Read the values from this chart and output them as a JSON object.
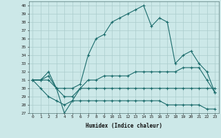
{
  "title": "",
  "xlabel": "Humidex (Indice chaleur)",
  "bg_color": "#cce8e8",
  "line_color": "#1a6b6b",
  "grid_color": "#aacccc",
  "xlim": [
    -0.5,
    23.5
  ],
  "ylim": [
    27,
    40.5
  ],
  "yticks": [
    27,
    28,
    29,
    30,
    31,
    32,
    33,
    34,
    35,
    36,
    37,
    38,
    39,
    40
  ],
  "xticks": [
    0,
    1,
    2,
    3,
    4,
    5,
    6,
    7,
    8,
    9,
    10,
    11,
    12,
    13,
    14,
    15,
    16,
    17,
    18,
    19,
    20,
    21,
    22,
    23
  ],
  "series": [
    [
      31,
      31,
      32,
      30,
      30,
      30,
      30.5,
      34,
      36,
      36.5,
      38,
      38.5,
      39,
      39.5,
      40,
      37.5,
      38.5,
      38,
      33,
      34,
      34.5,
      33,
      32,
      29.5
    ],
    [
      31,
      31,
      31,
      30,
      27,
      28.5,
      30,
      30,
      30,
      30,
      30,
      30,
      30,
      30,
      30,
      30,
      30,
      30,
      30,
      30,
      30,
      30,
      30,
      30
    ],
    [
      31,
      30,
      29,
      28.5,
      28,
      28.5,
      28.5,
      28.5,
      28.5,
      28.5,
      28.5,
      28.5,
      28.5,
      28.5,
      28.5,
      28.5,
      28.5,
      28,
      28,
      28,
      28,
      28,
      27.5,
      27.5
    ],
    [
      31,
      31,
      31.5,
      30,
      29,
      29,
      30,
      31,
      31,
      31.5,
      31.5,
      31.5,
      31.5,
      32,
      32,
      32,
      32,
      32,
      32,
      32.5,
      32.5,
      32.5,
      31,
      29.5
    ]
  ]
}
